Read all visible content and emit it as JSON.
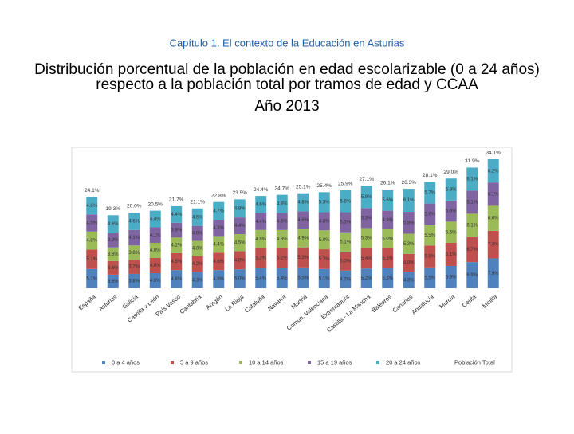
{
  "header": "Capítulo 1. El contexto de la Educación en Asturias",
  "chart_data": {
    "type": "stacked-bar",
    "title": "Distribución porcentual de la población en edad escolarizable (0 a 24 años) respecto a la población total por tramos de edad y CCAA",
    "subtitle": "Año 2013",
    "categories": [
      "España",
      "Asturias",
      "Galicia",
      "Castilla y León",
      "País Vasco",
      "Cantabria",
      "Aragón",
      "La Rioja",
      "Cataluña",
      "Navarra",
      "Madrid",
      "Comun. Valenciana",
      "Extremadura",
      "Castilla - La Mancha",
      "Baleares",
      "Canarias",
      "Andalucía",
      "Murcia",
      "Ceuta",
      "Melilla"
    ],
    "series": [
      {
        "name": "0 a 4 años",
        "color": "#4f81bd",
        "values": [
          5.1,
          3.6,
          3.8,
          4.0,
          4.8,
          4.3,
          4.8,
          5.0,
          5.4,
          5.4,
          5.5,
          5.1,
          4.7,
          5.2,
          5.3,
          4.3,
          5.5,
          5.9,
          6.9,
          7.9
        ],
        "value_labels": [
          "5.1%",
          "3.6%",
          "3.8%",
          "4.0%",
          "4.8%",
          "4.3%",
          "4.8%",
          "5.0%",
          "5.4%",
          "5.4%",
          "5.5%",
          "5.1%",
          "4.7%",
          "5.2%",
          "5.3%",
          "4.3%",
          "5.5%",
          "5.9%",
          "6.9%",
          "7.9%"
        ]
      },
      {
        "name": "5 a 9 años",
        "color": "#c0504d",
        "values": [
          5.1,
          3.6,
          3.7,
          4.0,
          4.5,
          4.2,
          4.6,
          4.8,
          5.2,
          5.2,
          5.3,
          5.2,
          5.0,
          5.4,
          5.3,
          4.8,
          5.8,
          6.1,
          6.7,
          7.3
        ],
        "value_labels": [
          "5.1%",
          "3.6%",
          "3.7%",
          "4.0%",
          "4.5%",
          "4.2%",
          "4.6%",
          "4.8%",
          "5.2%",
          "5.2%",
          "5.3%",
          "5.2%",
          "5.0%",
          "5.4%",
          "5.3%",
          "4.8%",
          "5.8%",
          "6.1%",
          "6.7%",
          "7.3%"
        ]
      },
      {
        "name": "10 a 14 años",
        "color": "#9bbb59",
        "values": [
          4.8,
          3.6,
          3.8,
          4.0,
          4.1,
          4.0,
          4.4,
          4.5,
          4.8,
          4.8,
          4.9,
          5.0,
          5.1,
          5.3,
          5.0,
          5.3,
          5.5,
          5.6,
          6.1,
          6.6
        ],
        "value_labels": [
          "4.8%",
          "3.6%",
          "3.8%",
          "4.0%",
          "4.1%",
          "4.0%",
          "4.4%",
          "4.5%",
          "4.8%",
          "4.8%",
          "4.9%",
          "5.0%",
          "5.1%",
          "5.3%",
          "5.0%",
          "5.3%",
          "5.5%",
          "5.6%",
          "6.1%",
          "6.6%"
        ]
      },
      {
        "name": "15 a 19 años",
        "color": "#8064a2",
        "values": [
          4.5,
          3.9,
          4.1,
          4.1,
          3.9,
          4.0,
          4.3,
          4.4,
          4.4,
          4.5,
          4.6,
          4.8,
          5.3,
          5.3,
          4.9,
          5.8,
          5.6,
          5.6,
          6.1,
          6.1
        ],
        "value_labels": [
          "4.5%",
          "3.9%",
          "4.1%",
          "4.1%",
          "3.9%",
          "4.0%",
          "4.3%",
          "4.4%",
          "4.4%",
          "4.5%",
          "4.6%",
          "4.8%",
          "5.3%",
          "5.3%",
          "4.9%",
          "5.8%",
          "5.6%",
          "5.6%",
          "6.1%",
          "6.1%"
        ]
      },
      {
        "name": "20 a 24 años",
        "color": "#4bacc6",
        "values": [
          4.6,
          4.6,
          4.6,
          4.4,
          4.4,
          4.6,
          4.7,
          4.8,
          4.6,
          4.8,
          4.8,
          5.3,
          5.8,
          5.9,
          5.6,
          6.1,
          5.7,
          5.8,
          6.1,
          6.2
        ],
        "value_labels": [
          "4.6%",
          "4.6%",
          "4.6%",
          "4.4%",
          "4.4%",
          "4.6%",
          "4.7%",
          "4.8%",
          "4.6%",
          "4.8%",
          "4.8%",
          "5.3%",
          "5.8%",
          "5.9%",
          "5.6%",
          "6.1%",
          "5.7%",
          "5.8%",
          "6.1%",
          "6.2%"
        ]
      }
    ],
    "total": {
      "name": "Población Total",
      "values": [
        24.1,
        19.3,
        20.0,
        20.5,
        21.7,
        21.1,
        22.8,
        23.5,
        24.4,
        24.7,
        25.1,
        25.4,
        25.9,
        27.1,
        26.1,
        26.3,
        28.1,
        29.0,
        31.9,
        34.1
      ],
      "value_labels": [
        "24.1%",
        "19.3%",
        "20.0%",
        "20.5%",
        "21.7%",
        "21.1%",
        "22.8%",
        "23.5%",
        "24.4%",
        "24.7%",
        "25.1%",
        "25.4%",
        "25.9%",
        "27.1%",
        "26.1%",
        "26.3%",
        "28.1%",
        "29.0%",
        "31.9%",
        "34.1%"
      ]
    }
  }
}
